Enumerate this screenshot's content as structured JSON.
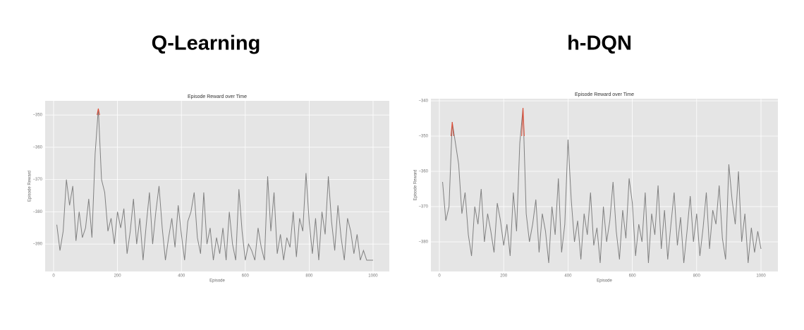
{
  "chart_data": [
    {
      "type": "line",
      "panel_title": "Q-Learning",
      "title": "Episode Reward over Time",
      "xlabel": "Episode",
      "ylabel": "Episode Reward",
      "grid": true,
      "xlim": [
        -26.5,
        1050.8
      ],
      "ylim": [
        -398.5,
        -345.6
      ],
      "xticks": [
        0,
        200,
        400,
        600,
        800,
        1000
      ],
      "yticks": [
        {
          "value": -390,
          "label": "−390"
        },
        {
          "value": -380,
          "label": "−380"
        },
        {
          "value": -370,
          "label": "−370"
        },
        {
          "value": -360,
          "label": "−360"
        },
        {
          "value": -350,
          "label": "−350"
        }
      ],
      "series": [
        {
          "color": "#808080",
          "x": [
            10,
            20,
            30,
            40,
            50,
            60,
            70,
            80,
            90,
            100,
            110,
            120,
            130,
            140,
            150,
            160,
            170,
            180,
            190,
            200,
            210,
            220,
            230,
            240,
            250,
            260,
            270,
            280,
            290,
            300,
            310,
            320,
            330,
            340,
            350,
            360,
            370,
            380,
            390,
            400,
            410,
            420,
            430,
            440,
            450,
            460,
            470,
            480,
            490,
            500,
            510,
            520,
            530,
            540,
            550,
            560,
            570,
            580,
            590,
            600,
            610,
            620,
            630,
            640,
            650,
            660,
            670,
            680,
            690,
            700,
            710,
            720,
            730,
            740,
            750,
            760,
            770,
            780,
            790,
            800,
            810,
            820,
            830,
            840,
            850,
            860,
            870,
            880,
            890,
            900,
            910,
            920,
            930,
            940,
            950,
            960,
            970,
            980,
            990,
            1000
          ],
          "values": [
            -384,
            -392,
            -386,
            -370,
            -378,
            -372,
            -389,
            -380,
            -388,
            -385,
            -376,
            -388,
            -362,
            -348,
            -370,
            -374,
            -386,
            -382,
            -390,
            -380,
            -385,
            -379,
            -393,
            -386,
            -376,
            -390,
            -382,
            -395,
            -384,
            -374,
            -390,
            -380,
            -372,
            -385,
            -395,
            -388,
            -382,
            -391,
            -378,
            -387,
            -395,
            -383,
            -380,
            -374,
            -388,
            -393,
            -374,
            -390,
            -385,
            -395,
            -388,
            -393,
            -385,
            -395,
            -380,
            -390,
            -395,
            -373,
            -386,
            -395,
            -390,
            -392,
            -395,
            -385,
            -391,
            -395,
            -369,
            -386,
            -374,
            -393,
            -387,
            -395,
            -388,
            -391,
            -380,
            -394,
            -382,
            -386,
            -368,
            -383,
            -393,
            -382,
            -395,
            -380,
            -387,
            -369,
            -383,
            -392,
            -378,
            -388,
            -395,
            -382,
            -386,
            -393,
            -387,
            -395,
            -392,
            -395,
            -395,
            -395
          ]
        },
        {
          "color": "#e24a33",
          "x": [
            136,
            140,
            144
          ],
          "values": [
            -350,
            -348,
            -350
          ]
        }
      ]
    },
    {
      "type": "line",
      "panel_title": "h-DQN",
      "title": "Episode Reward over Time",
      "xlabel": "Episode",
      "ylabel": "Episode Reward",
      "grid": true,
      "xlim": [
        -26.3,
        1052.6
      ],
      "ylim": [
        -388.4,
        -339.4
      ],
      "xticks": [
        0,
        200,
        400,
        600,
        800,
        1000
      ],
      "yticks": [
        {
          "value": -380,
          "label": "−380"
        },
        {
          "value": -370,
          "label": "−370"
        },
        {
          "value": -360,
          "label": "−360"
        },
        {
          "value": -350,
          "label": "−350"
        },
        {
          "value": -340,
          "label": "−340"
        }
      ],
      "series": [
        {
          "color": "#808080",
          "x": [
            10,
            20,
            30,
            40,
            50,
            60,
            70,
            80,
            90,
            100,
            110,
            120,
            130,
            140,
            150,
            160,
            170,
            180,
            190,
            200,
            210,
            220,
            230,
            240,
            250,
            260,
            270,
            280,
            290,
            300,
            310,
            320,
            330,
            340,
            350,
            360,
            370,
            380,
            390,
            400,
            410,
            420,
            430,
            440,
            450,
            460,
            470,
            480,
            490,
            500,
            510,
            520,
            530,
            540,
            550,
            560,
            570,
            580,
            590,
            600,
            610,
            620,
            630,
            640,
            650,
            660,
            670,
            680,
            690,
            700,
            710,
            720,
            730,
            740,
            750,
            760,
            770,
            780,
            790,
            800,
            810,
            820,
            830,
            840,
            850,
            860,
            870,
            880,
            890,
            900,
            910,
            920,
            930,
            940,
            950,
            960,
            970,
            980,
            990,
            1000
          ],
          "values": [
            -363,
            -374,
            -370,
            -346,
            -352,
            -358,
            -372,
            -366,
            -378,
            -384,
            -370,
            -375,
            -365,
            -380,
            -372,
            -377,
            -383,
            -369,
            -374,
            -381,
            -375,
            -384,
            -366,
            -377,
            -352,
            -342,
            -372,
            -380,
            -375,
            -368,
            -383,
            -372,
            -377,
            -386,
            -370,
            -378,
            -362,
            -383,
            -375,
            -351,
            -368,
            -380,
            -374,
            -385,
            -372,
            -378,
            -366,
            -381,
            -376,
            -386,
            -370,
            -380,
            -374,
            -363,
            -377,
            -385,
            -371,
            -379,
            -362,
            -369,
            -384,
            -375,
            -380,
            -366,
            -386,
            -372,
            -378,
            -364,
            -382,
            -371,
            -385,
            -375,
            -366,
            -381,
            -373,
            -386,
            -377,
            -367,
            -380,
            -372,
            -384,
            -376,
            -366,
            -382,
            -371,
            -375,
            -364,
            -379,
            -385,
            -358,
            -368,
            -375,
            -360,
            -380,
            -372,
            -386,
            -376,
            -383,
            -377,
            -382
          ]
        },
        {
          "color": "#e24a33",
          "x": [
            36,
            40,
            44,
            48,
            256,
            260,
            264
          ],
          "values": [
            -350,
            -346,
            -350,
            null,
            -350,
            -342,
            -350
          ]
        }
      ]
    }
  ]
}
